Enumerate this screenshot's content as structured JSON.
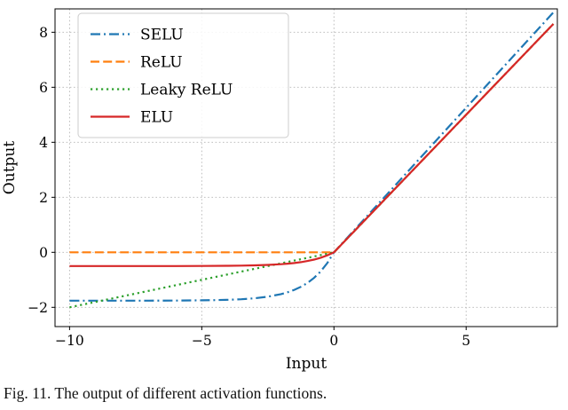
{
  "caption": "Fig. 11. The output of different activation functions.",
  "chart_data": {
    "type": "line",
    "title": "",
    "xlabel": "Input",
    "ylabel": "Output",
    "xlim": [
      -10.55,
      8.45
    ],
    "ylim": [
      -2.7,
      8.85
    ],
    "xticks": [
      -10,
      -5,
      0,
      5
    ],
    "yticks": [
      -2,
      0,
      2,
      4,
      6,
      8
    ],
    "xtick_labels": [
      "−10",
      "−5",
      "0",
      "5"
    ],
    "ytick_labels": [
      "−2",
      "0",
      "2",
      "4",
      "6",
      "8"
    ],
    "grid": true,
    "legend_position": "upper left",
    "series": [
      {
        "name": "SELU",
        "color": "#1f77b4",
        "dash": "dashdot",
        "x": [
          -10,
          -9,
          -8,
          -7,
          -6,
          -5,
          -4.5,
          -4,
          -3.5,
          -3,
          -2.5,
          -2,
          -1.75,
          -1.5,
          -1.25,
          -1,
          -0.75,
          -0.5,
          -0.25,
          0,
          1,
          2,
          3,
          4,
          5,
          6,
          7,
          8,
          8.3
        ],
        "y": [
          -1.758,
          -1.7579,
          -1.7575,
          -1.7565,
          -1.7537,
          -1.7463,
          -1.7386,
          -1.7259,
          -1.705,
          -1.6706,
          -1.6138,
          -1.5201,
          -1.4526,
          -1.3658,
          -1.2544,
          -1.1113,
          -0.9276,
          -0.6917,
          -0.3889,
          0,
          1.0507,
          2.1014,
          3.1521,
          4.2028,
          5.2535,
          6.3042,
          7.3549,
          8.4056,
          8.7208
        ]
      },
      {
        "name": "ReLU",
        "color": "#ff7f0e",
        "dash": "dashed",
        "x": [
          -10,
          0,
          8.3
        ],
        "y": [
          0,
          0,
          8.3
        ]
      },
      {
        "name": "Leaky ReLU",
        "color": "#2ca02c",
        "dash": "dotted",
        "x": [
          -10,
          0,
          8.3
        ],
        "y": [
          -2,
          0,
          8.3
        ]
      },
      {
        "name": "ELU",
        "color": "#d62728",
        "dash": "solid",
        "x": [
          -10,
          -8,
          -6,
          -5,
          -4,
          -3.5,
          -3,
          -2.5,
          -2,
          -1.75,
          -1.5,
          -1.25,
          -1,
          -0.75,
          -0.5,
          -0.25,
          0,
          8.3
        ],
        "y": [
          -0.5,
          -0.4998,
          -0.4988,
          -0.4966,
          -0.4908,
          -0.4849,
          -0.4751,
          -0.459,
          -0.4323,
          -0.4131,
          -0.3884,
          -0.3567,
          -0.3161,
          -0.2638,
          -0.1967,
          -0.1106,
          0,
          8.3
        ]
      }
    ]
  }
}
